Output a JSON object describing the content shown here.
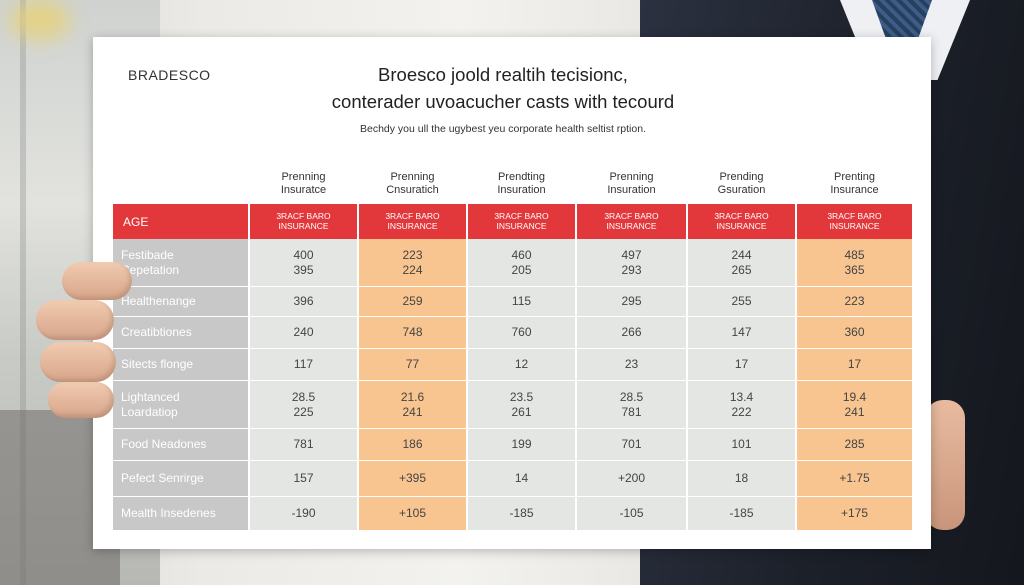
{
  "brand": "BRADESCO",
  "title_line1": "Broesco joold realtih tecisionc,",
  "title_line2": "conterader uvoacucher casts with tecourd",
  "subtitle": "Bechdy you ull the ugybest yeu corporate health seltist rption.",
  "columns": [
    {
      "head1": "Prenning",
      "head2": "Insuratce",
      "sub1": "3RACF BARO",
      "sub2": "INSURANCE",
      "color": "grey"
    },
    {
      "head1": "Prenning",
      "head2": "Cnsuratich",
      "sub1": "3RACF BARO",
      "sub2": "INSURANCE",
      "color": "orange"
    },
    {
      "head1": "Prendting",
      "head2": "Insuration",
      "sub1": "3RACF BARO",
      "sub2": "INSURANCE",
      "color": "grey"
    },
    {
      "head1": "Prenning",
      "head2": "Insuration",
      "sub1": "3RACF BARO",
      "sub2": "INSURANCE",
      "color": "grey"
    },
    {
      "head1": "Prending",
      "head2": "Gsuration",
      "sub1": "3RACF BARO",
      "sub2": "INSURANCE",
      "color": "grey"
    },
    {
      "head1": "Prenting",
      "head2": "Insurance",
      "sub1": "3RACF BARO",
      "sub2": "INSURANCE",
      "color": "orange"
    }
  ],
  "age_label": "AGE",
  "rows": [
    {
      "label": [
        "Festibade",
        "Cepetation"
      ],
      "values": [
        [
          "400",
          "395"
        ],
        [
          "223",
          "224"
        ],
        [
          "460",
          "205"
        ],
        [
          "497",
          "293"
        ],
        [
          "244",
          "265"
        ],
        [
          "485",
          "365"
        ]
      ]
    },
    {
      "label": [
        "Healthenange"
      ],
      "values": [
        [
          "396"
        ],
        [
          "259"
        ],
        [
          "115"
        ],
        [
          "295"
        ],
        [
          "255"
        ],
        [
          "223"
        ]
      ]
    },
    {
      "label": [
        "Creatibtiones"
      ],
      "values": [
        [
          "240"
        ],
        [
          "748"
        ],
        [
          "760"
        ],
        [
          "266"
        ],
        [
          "147"
        ],
        [
          "360"
        ]
      ]
    },
    {
      "label": [
        "Sitects flonge"
      ],
      "values": [
        [
          "117"
        ],
        [
          "77"
        ],
        [
          "12"
        ],
        [
          "23"
        ],
        [
          "17"
        ],
        [
          "17"
        ]
      ]
    },
    {
      "label": [
        "Lightanced",
        "Loardatiop"
      ],
      "values": [
        [
          "28.5",
          "225"
        ],
        [
          "21.6",
          "241"
        ],
        [
          "23.5",
          "261"
        ],
        [
          "28.5",
          "781"
        ],
        [
          "13.4",
          "222"
        ],
        [
          "19.4",
          "241"
        ]
      ]
    },
    {
      "label": [
        "Food Neadones"
      ],
      "values": [
        [
          "781"
        ],
        [
          "186"
        ],
        [
          "199"
        ],
        [
          "701"
        ],
        [
          "101"
        ],
        [
          "285"
        ]
      ]
    },
    {
      "label": [
        "Pefect Senrirge"
      ],
      "values": [
        [
          "157"
        ],
        [
          "+395"
        ],
        [
          "14"
        ],
        [
          "+200"
        ],
        [
          "18"
        ],
        [
          "+1.75"
        ]
      ]
    },
    {
      "label": [
        "Mealth Insedenes"
      ],
      "values": [
        [
          "-190"
        ],
        [
          "+105"
        ],
        [
          "-185"
        ],
        [
          "-105"
        ],
        [
          "-185"
        ],
        [
          "+175"
        ]
      ]
    }
  ]
}
